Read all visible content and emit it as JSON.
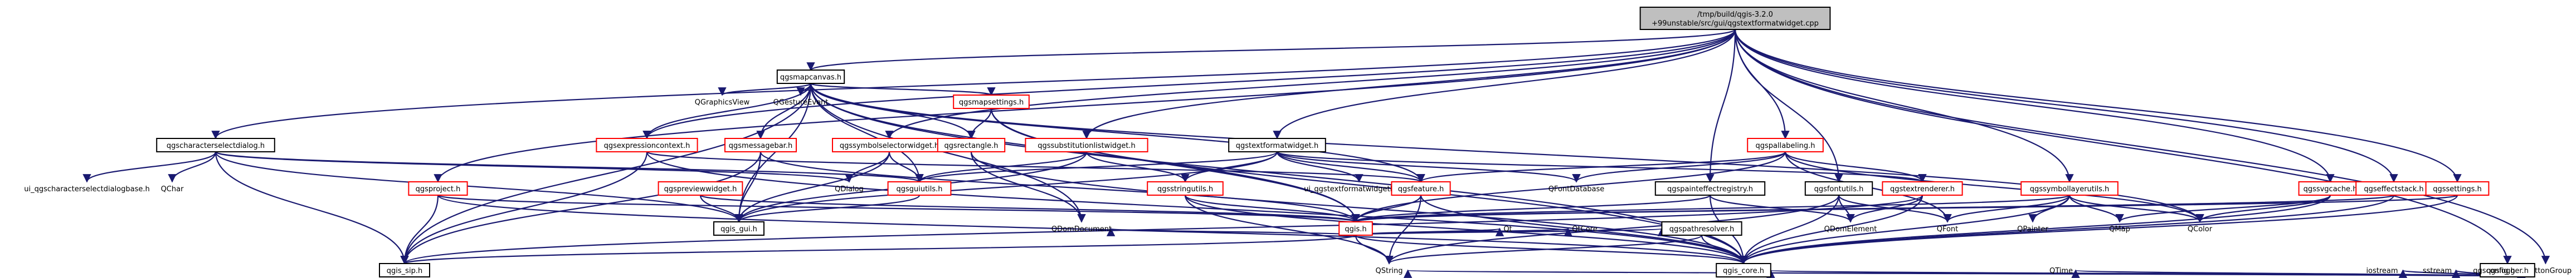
{
  "diagram": {
    "title": "/tmp/build/qgis-3.2.0+99unstable/src/gui/qgstextformatwidget.cpp include dependency graph",
    "colors": {
      "edge": "#191970",
      "root_fill": "#bfbfbf",
      "root_border": "#000000",
      "node_fill": "#ffffff",
      "node_border": "#000000",
      "red_border": "#ff0000",
      "ext_border": "#bfbfbf"
    },
    "nodes": [
      {
        "id": "root",
        "lines": [
          "/tmp/build/qgis-3.2.0",
          "+99unstable/src/gui/qgstextformatwidget.cpp"
        ],
        "kind": "root"
      },
      {
        "id": "qgsmapcanvas",
        "lines": [
          "qgsmapcanvas.h"
        ],
        "kind": "normal"
      },
      {
        "id": "qbuttongroup",
        "lines": [
          "QButtonGroup"
        ],
        "kind": "plain"
      },
      {
        "id": "qgraphicsview",
        "lines": [
          "QGraphicsView"
        ],
        "kind": "plain"
      },
      {
        "id": "qgestureevent",
        "lines": [
          "QGestureEvent"
        ],
        "kind": "plain"
      },
      {
        "id": "qgsmapsettings",
        "lines": [
          "qgsmapsettings.h"
        ],
        "kind": "red"
      },
      {
        "id": "qgscharsel",
        "lines": [
          "qgscharacterselectdialog.h"
        ],
        "kind": "normal"
      },
      {
        "id": "ui_charsel",
        "lines": [
          "ui_qgscharacterselectdialogbase.h"
        ],
        "kind": "plain"
      },
      {
        "id": "qchar",
        "lines": [
          "QChar"
        ],
        "kind": "plain"
      },
      {
        "id": "qgsexprctx",
        "lines": [
          "qgsexpressioncontext.h"
        ],
        "kind": "red"
      },
      {
        "id": "qgsmsgbar",
        "lines": [
          "qgsmessagebar.h"
        ],
        "kind": "red"
      },
      {
        "id": "qgssymsel",
        "lines": [
          "qgssymbolselectorwidget.h"
        ],
        "kind": "red"
      },
      {
        "id": "qgsrect",
        "lines": [
          "qgsrectangle.h"
        ],
        "kind": "red"
      },
      {
        "id": "qgssubst",
        "lines": [
          "qgssubstitutionlistwidget.h"
        ],
        "kind": "red"
      },
      {
        "id": "qgstfw",
        "lines": [
          "qgstextformatwidget.h"
        ],
        "kind": "normal"
      },
      {
        "id": "qgspallabeling",
        "lines": [
          "qgspallabeling.h"
        ],
        "kind": "red"
      },
      {
        "id": "qgsproject",
        "lines": [
          "qgsproject.h"
        ],
        "kind": "red"
      },
      {
        "id": "qgspreviewfx",
        "lines": [
          "qgspreviewwidget.h"
        ],
        "kind": "red"
      },
      {
        "id": "qgsguiutils",
        "lines": [
          "qgsguiutils.h"
        ],
        "kind": "red"
      },
      {
        "id": "qdialog",
        "lines": [
          "QDialog"
        ],
        "kind": "plain"
      },
      {
        "id": "qgsstringutils",
        "lines": [
          "qgsstringutils.h"
        ],
        "kind": "red"
      },
      {
        "id": "ui_tfwbase",
        "lines": [
          "ui_qgstextformatwidgetbase.h"
        ],
        "kind": "plain"
      },
      {
        "id": "qgsfeature",
        "lines": [
          "qgsfeature.h"
        ],
        "kind": "red"
      },
      {
        "id": "qfontdatabase",
        "lines": [
          "QFontDatabase"
        ],
        "kind": "plain"
      },
      {
        "id": "qgspainteffreg",
        "lines": [
          "qgspainteffectregistry.h"
        ],
        "kind": "normal"
      },
      {
        "id": "qgsfontutils",
        "lines": [
          "qgsfontutils.h"
        ],
        "kind": "normal"
      },
      {
        "id": "qgstextrenderer",
        "lines": [
          "qgstextrenderer.h"
        ],
        "kind": "red"
      },
      {
        "id": "qgssymlayerutils",
        "lines": [
          "qgssymbollayerutils.h"
        ],
        "kind": "red"
      },
      {
        "id": "qgssvgcache",
        "lines": [
          "qgssvgcache.h"
        ],
        "kind": "red"
      },
      {
        "id": "qgseffectstack",
        "lines": [
          "qgseffectstack.h"
        ],
        "kind": "red"
      },
      {
        "id": "qgssettings",
        "lines": [
          "qgssettings.h"
        ],
        "kind": "red"
      },
      {
        "id": "qgslogger",
        "lines": [
          "qgslogger.h"
        ],
        "kind": "normal"
      },
      {
        "id": "qgis_gui",
        "lines": [
          "qgis_gui.h"
        ],
        "kind": "normal"
      },
      {
        "id": "qgis_h",
        "lines": [
          "qgis.h"
        ],
        "kind": "red"
      },
      {
        "id": "qt",
        "lines": [
          "Qt"
        ],
        "kind": "plain"
      },
      {
        "id": "qcore",
        "lines": [
          "QtCore"
        ],
        "kind": "plain"
      },
      {
        "id": "qdomdoc",
        "lines": [
          "QDomDocument"
        ],
        "kind": "plain"
      },
      {
        "id": "qgspathresolver",
        "lines": [
          "qgspathresolver.h"
        ],
        "kind": "normal"
      },
      {
        "id": "qdomelement",
        "lines": [
          "QDomElement"
        ],
        "kind": "plain"
      },
      {
        "id": "qfont",
        "lines": [
          "QFont"
        ],
        "kind": "plain"
      },
      {
        "id": "qpainter",
        "lines": [
          "QPainter"
        ],
        "kind": "plain"
      },
      {
        "id": "qmap",
        "lines": [
          "QMap"
        ],
        "kind": "plain"
      },
      {
        "id": "qcolor",
        "lines": [
          "QColor"
        ],
        "kind": "plain"
      },
      {
        "id": "qgis_sip",
        "lines": [
          "qgis_sip.h"
        ],
        "kind": "normal"
      },
      {
        "id": "qstring",
        "lines": [
          "QString"
        ],
        "kind": "plain"
      },
      {
        "id": "qgis_core",
        "lines": [
          "qgis_core.h"
        ],
        "kind": "normal"
      },
      {
        "id": "qtime",
        "lines": [
          "QTime"
        ],
        "kind": "plain"
      },
      {
        "id": "iostream",
        "lines": [
          "iostream"
        ],
        "kind": "plain"
      },
      {
        "id": "sstream",
        "lines": [
          "sstream"
        ],
        "kind": "plain"
      },
      {
        "id": "qgsconfig",
        "lines": [
          "qgsconfig.h"
        ],
        "kind": "plain"
      }
    ],
    "edges": [
      [
        "root",
        "qgsmapcanvas"
      ],
      [
        "root",
        "qbuttongroup"
      ],
      [
        "root",
        "qgscharsel"
      ],
      [
        "root",
        "qgsexprctx"
      ],
      [
        "root",
        "qgssymsel"
      ],
      [
        "root",
        "qgssubst"
      ],
      [
        "root",
        "qgstfw"
      ],
      [
        "root",
        "qgspallabeling"
      ],
      [
        "root",
        "qgspainteffreg"
      ],
      [
        "root",
        "qgsfontutils"
      ],
      [
        "root",
        "qgssymlayerutils"
      ],
      [
        "root",
        "qgssvgcache"
      ],
      [
        "root",
        "qgseffectstack"
      ],
      [
        "root",
        "qgssettings"
      ],
      [
        "root",
        "qgslogger"
      ],
      [
        "root",
        "qgsproject"
      ],
      [
        "qgsmapcanvas",
        "qgraphicsview"
      ],
      [
        "qgsmapcanvas",
        "qgestureevent"
      ],
      [
        "qgsmapcanvas",
        "qgsmapsettings"
      ],
      [
        "qgsmapcanvas",
        "qgsexprctx"
      ],
      [
        "qgsmapcanvas",
        "qgsmsgbar"
      ],
      [
        "qgsmapcanvas",
        "qgsrect"
      ],
      [
        "qgsmapcanvas",
        "qgis_gui"
      ],
      [
        "qgsmapcanvas",
        "qgis_sip"
      ],
      [
        "qgsmapcanvas",
        "qgsfeature"
      ],
      [
        "qgsmapcanvas",
        "qgis_h"
      ],
      [
        "qgsmapcanvas",
        "qdomdoc"
      ],
      [
        "qgsmapcanvas",
        "qgsguiutils"
      ],
      [
        "qgsmapcanvas",
        "qgis_core"
      ],
      [
        "qgsmapcanvas",
        "qcolor"
      ],
      [
        "qgsmapsettings",
        "qgsrect"
      ],
      [
        "qgsmapsettings",
        "qgis_core"
      ],
      [
        "qgsmapsettings",
        "qgis_h"
      ],
      [
        "qgscharsel",
        "ui_charsel"
      ],
      [
        "qgscharsel",
        "qchar"
      ],
      [
        "qgscharsel",
        "qgis_gui"
      ],
      [
        "qgscharsel",
        "qgis_sip"
      ],
      [
        "qgscharsel",
        "qgsguiutils"
      ],
      [
        "qgscharsel",
        "qdialog"
      ],
      [
        "qgsexprctx",
        "qgis_core"
      ],
      [
        "qgsexprctx",
        "qgis_sip"
      ],
      [
        "qgsexprctx",
        "qgsfeature"
      ],
      [
        "qgsmsgbar",
        "qgis_gui"
      ],
      [
        "qgsmsgbar",
        "qgis_h"
      ],
      [
        "qgsmsgbar",
        "qgis_sip"
      ],
      [
        "qgssymsel",
        "qdialog"
      ],
      [
        "qgssymsel",
        "qgsguiutils"
      ],
      [
        "qgssymsel",
        "qgis_gui"
      ],
      [
        "qgsrect",
        "qgis_core"
      ],
      [
        "qgsrect",
        "qdomdoc"
      ],
      [
        "qgssubst",
        "qgsguiutils"
      ],
      [
        "qgssubst",
        "qgsstringutils"
      ],
      [
        "qgssubst",
        "qgis_gui"
      ],
      [
        "qgstfw",
        "ui_tfwbase"
      ],
      [
        "qgstfw",
        "qgsstringutils"
      ],
      [
        "qgstfw",
        "qgsguiutils"
      ],
      [
        "qgstfw",
        "qgis_gui"
      ],
      [
        "qgstfw",
        "qgsfeature"
      ],
      [
        "qgstfw",
        "qgstextrenderer"
      ],
      [
        "qgstfw",
        "qfontdatabase"
      ],
      [
        "qgspallabeling",
        "qgsfeature"
      ],
      [
        "qgspallabeling",
        "qgis_h"
      ],
      [
        "qgspallabeling",
        "qfont"
      ],
      [
        "qgspallabeling",
        "qfontdatabase"
      ],
      [
        "qgspallabeling",
        "qcolor"
      ],
      [
        "qgspallabeling",
        "qgstextrenderer"
      ],
      [
        "qgsproject",
        "qgis_sip"
      ],
      [
        "qgsproject",
        "qgis_core"
      ],
      [
        "qgsproject",
        "qgis_h"
      ],
      [
        "qgspreviewfx",
        "qgis_gui"
      ],
      [
        "qgspreviewfx",
        "qgis_h"
      ],
      [
        "qgsguiutils",
        "qgis_gui"
      ],
      [
        "qgsstringutils",
        "qgis_core"
      ],
      [
        "qgsstringutils",
        "qgis_h"
      ],
      [
        "qgsstringutils",
        "qstring"
      ],
      [
        "qgsfeature",
        "qgis_core"
      ],
      [
        "qgsfeature",
        "qgis_h"
      ],
      [
        "qgsfeature",
        "qstring"
      ],
      [
        "qgspainteffreg",
        "qgis_core"
      ],
      [
        "qgspainteffreg",
        "qdomelement"
      ],
      [
        "qgspainteffreg",
        "qgis_h"
      ],
      [
        "qgsfontutils",
        "qgis_core"
      ],
      [
        "qgsfontutils",
        "qfont"
      ],
      [
        "qgsfontutils",
        "qdomelement"
      ],
      [
        "qgsfontutils",
        "qstring"
      ],
      [
        "qgstextrenderer",
        "qgis_core"
      ],
      [
        "qgstextrenderer",
        "qgis_sip"
      ],
      [
        "qgstextrenderer",
        "qdomelement"
      ],
      [
        "qgssymlayerutils",
        "qgis_core"
      ],
      [
        "qgssymlayerutils",
        "qgis_h"
      ],
      [
        "qgssymlayerutils",
        "qmap"
      ],
      [
        "qgssymlayerutils",
        "qpainter"
      ],
      [
        "qgssymlayerutils",
        "qcolor"
      ],
      [
        "qgssymlayerutils",
        "qfont"
      ],
      [
        "qgssvgcache",
        "qgis_core"
      ],
      [
        "qgssvgcache",
        "qmap"
      ],
      [
        "qgssvgcache",
        "qcolor"
      ],
      [
        "qgseffectstack",
        "qgis_core"
      ],
      [
        "qgseffectstack",
        "qgis_h"
      ],
      [
        "qgssettings",
        "qgis_core"
      ],
      [
        "qgssettings",
        "qgis_h"
      ],
      [
        "qgslogger",
        "iostream"
      ],
      [
        "qgslogger",
        "sstream"
      ],
      [
        "qgslogger",
        "qgsconfig"
      ],
      [
        "qgslogger",
        "qgis_core"
      ],
      [
        "qgslogger",
        "qtime"
      ],
      [
        "qgslogger",
        "qstring"
      ],
      [
        "qgis_h",
        "qgis_core"
      ],
      [
        "qgis_h",
        "qgis_sip"
      ],
      [
        "qgis_h",
        "qstring"
      ],
      [
        "qgis_h",
        "qt"
      ],
      [
        "qgis_h",
        "qcore"
      ],
      [
        "qgis_h",
        "qdomdoc"
      ],
      [
        "qgis_h",
        "qgspathresolver"
      ],
      [
        "qgspathresolver",
        "qgis_core"
      ],
      [
        "qgspathresolver",
        "qstring"
      ]
    ]
  }
}
